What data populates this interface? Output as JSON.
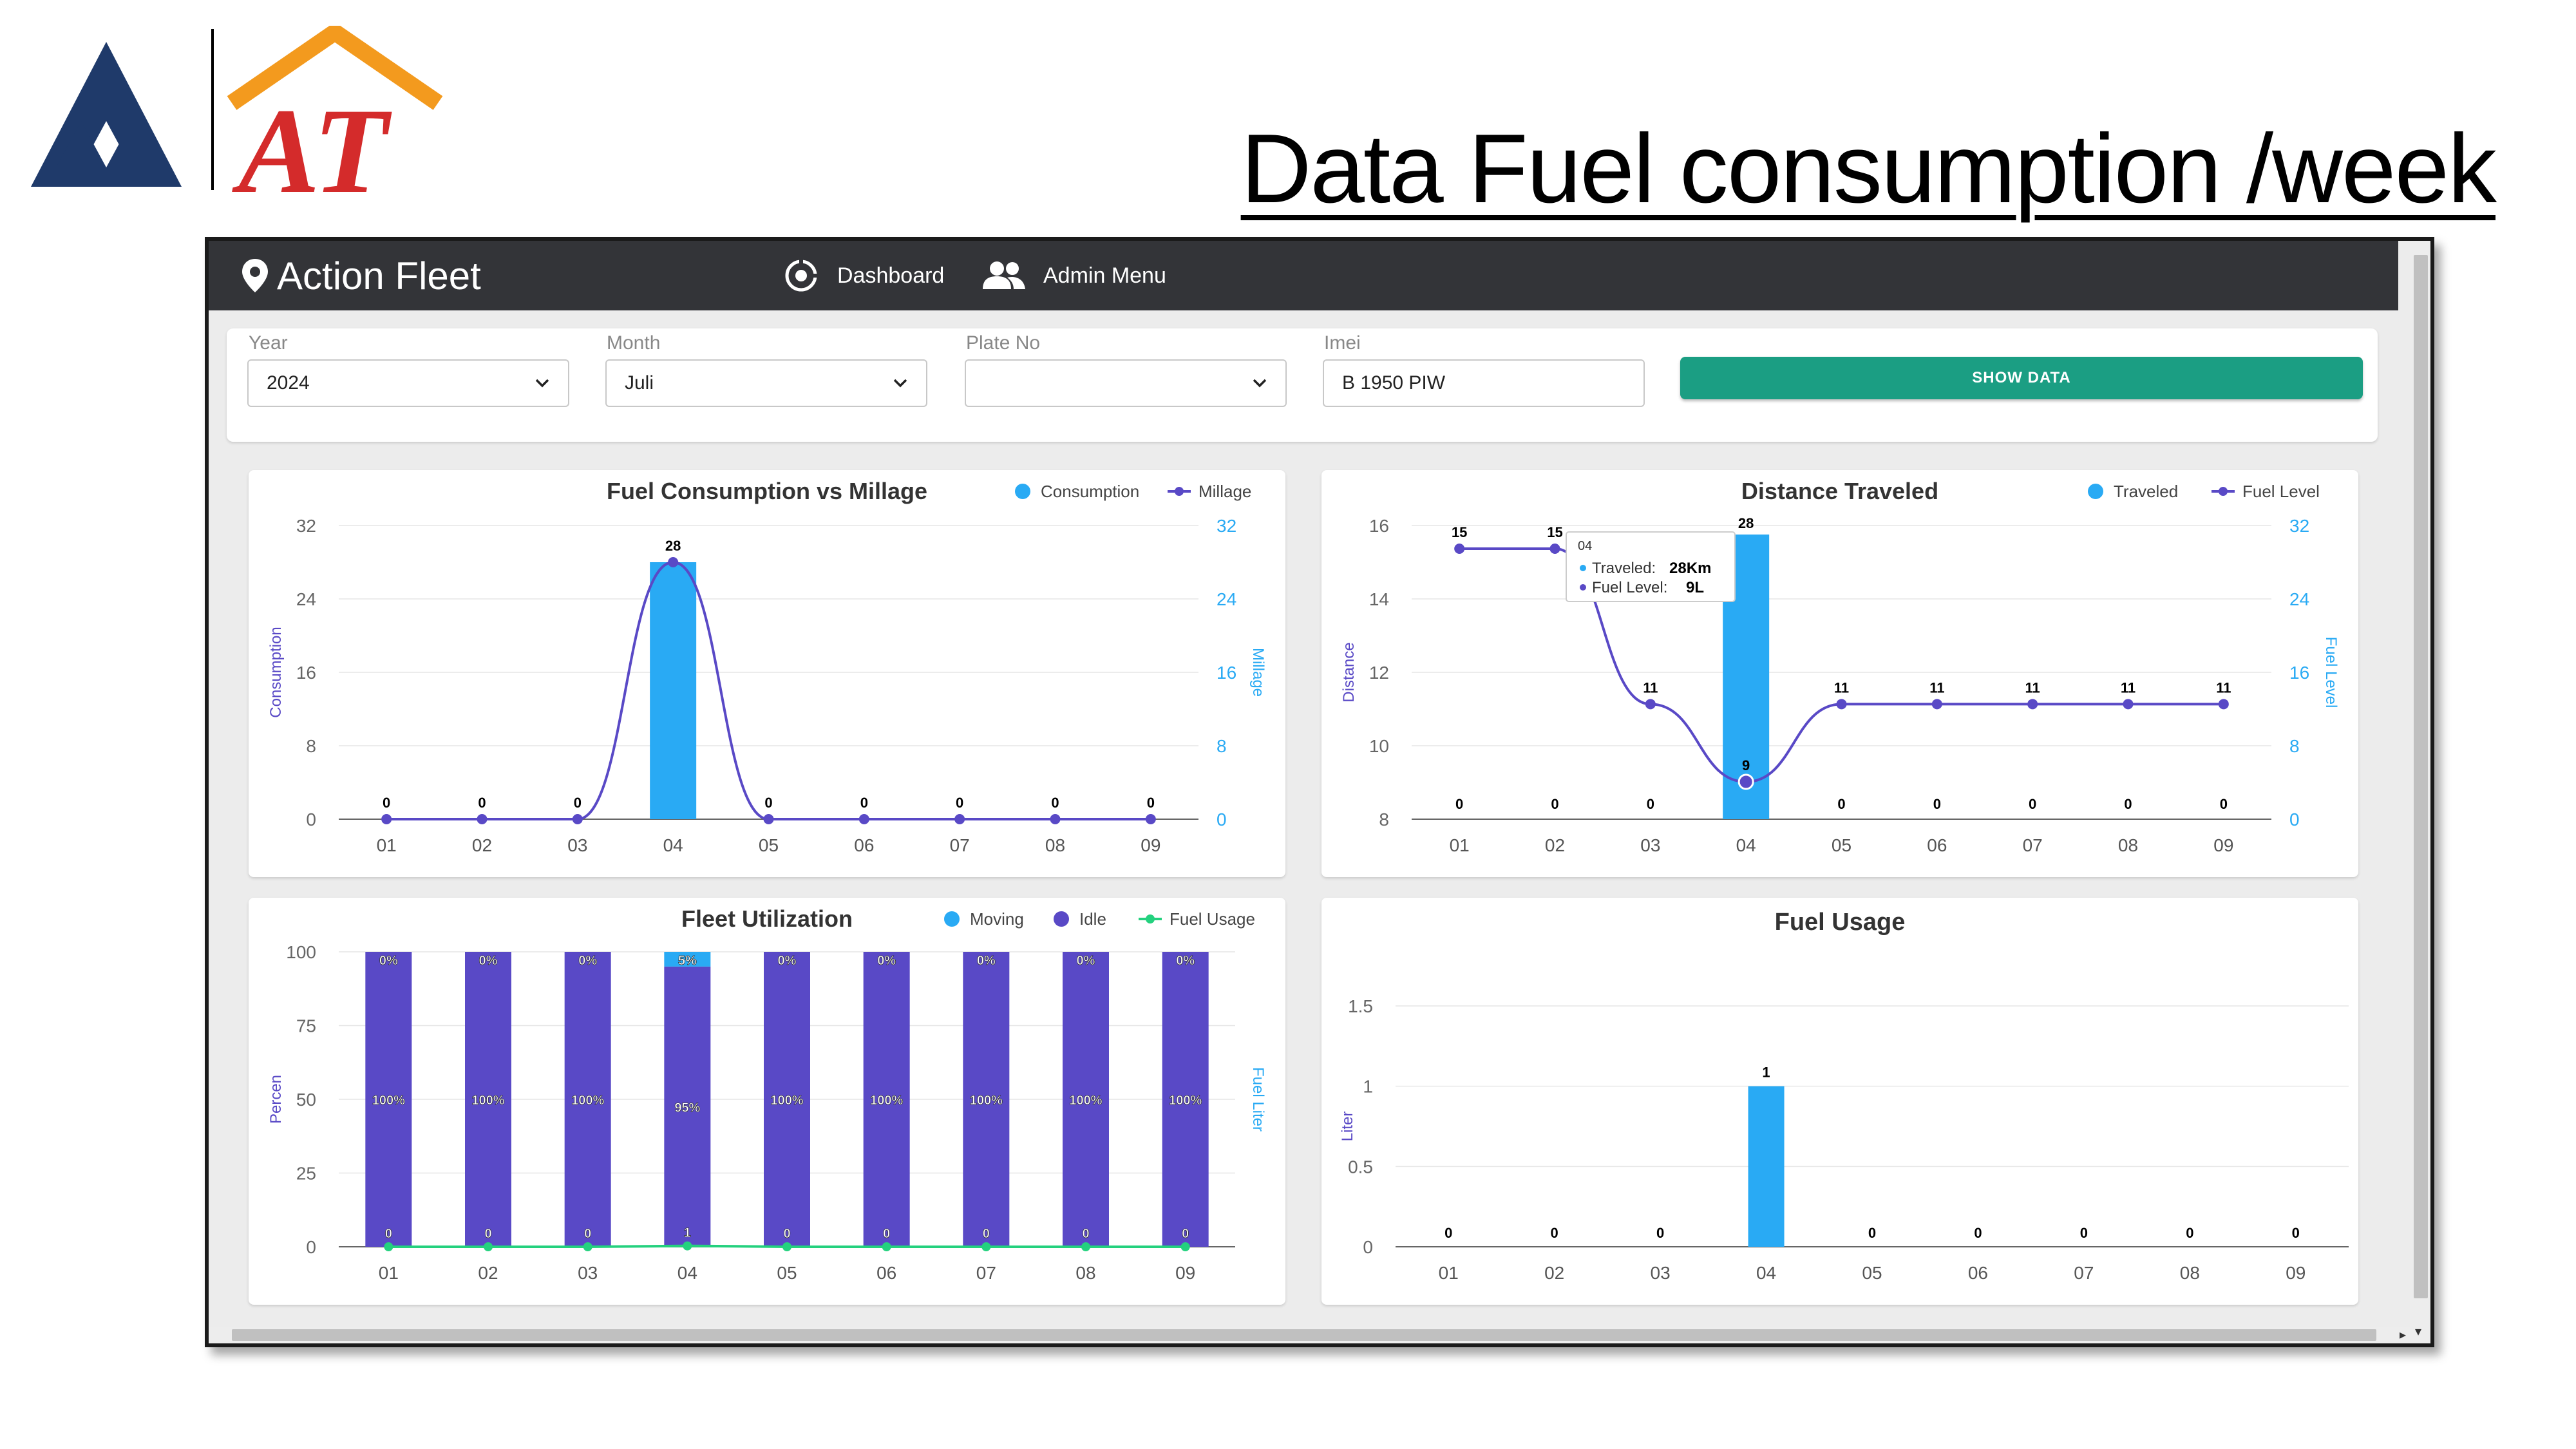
{
  "slide": {
    "title": "Data Fuel consumption /week"
  },
  "logo": {
    "text": "AT"
  },
  "navbar": {
    "brand": "Action Fleet",
    "dashboard_label": "Dashboard",
    "admin_label": "Admin Menu"
  },
  "filters": {
    "year": {
      "label": "Year",
      "value": "2024"
    },
    "month": {
      "label": "Month",
      "value": "Juli"
    },
    "plate": {
      "label": "Plate No",
      "value": ""
    },
    "imei": {
      "label": "Imei",
      "value": "B 1950 PIW"
    },
    "show_button": "SHOW DATA"
  },
  "colors": {
    "blue": "#29aaf4",
    "purple": "#5949c6",
    "green": "#24d17e",
    "teal": "#1b9e83",
    "navbar": "#333438"
  },
  "chart_data": [
    {
      "type": "bar",
      "title": "Fuel Consumption vs Millage",
      "categories": [
        "01",
        "02",
        "03",
        "04",
        "05",
        "06",
        "07",
        "08",
        "09"
      ],
      "series": [
        {
          "name": "Consumption",
          "type": "bar",
          "axis": "left",
          "values": [
            0,
            0,
            0,
            28,
            0,
            0,
            0,
            0,
            0
          ]
        },
        {
          "name": "Millage",
          "type": "line",
          "axis": "right",
          "values": [
            0,
            0,
            0,
            28,
            0,
            0,
            0,
            0,
            0
          ]
        }
      ],
      "ylabel": "Consumption",
      "ylabel_right": "Millage",
      "yticks": [
        "32",
        "24",
        "16",
        "8",
        "0"
      ],
      "yticks_right": [
        "32",
        "24",
        "16",
        "8",
        "0"
      ],
      "ylim": [
        0,
        32
      ],
      "ylim_right": [
        0,
        32
      ],
      "legend": "top-right"
    },
    {
      "type": "bar",
      "title": "Distance Traveled",
      "categories": [
        "01",
        "02",
        "03",
        "04",
        "05",
        "06",
        "07",
        "08",
        "09"
      ],
      "series": [
        {
          "name": "Traveled",
          "type": "bar",
          "axis": "left",
          "values": [
            0,
            0,
            0,
            28,
            0,
            0,
            0,
            0,
            0
          ]
        },
        {
          "name": "Fuel Level",
          "type": "line",
          "axis": "right",
          "values": [
            15,
            15,
            11,
            9,
            11,
            11,
            11,
            11,
            11
          ]
        }
      ],
      "ylabel": "Distance",
      "ylabel_right": "Fuel Level",
      "yticks": [
        "16",
        "14",
        "12",
        "10",
        "8"
      ],
      "yticks_right": [
        "32",
        "24",
        "16",
        "8",
        "0"
      ],
      "ylim": [
        8,
        16
      ],
      "ylim_right": [
        0,
        32
      ],
      "legend": "top-right",
      "tooltip": {
        "title": "04",
        "traveled_label": "Traveled:",
        "traveled_value": "28Km",
        "fuel_label": "Fuel Level:",
        "fuel_value": "9L"
      }
    },
    {
      "type": "bar",
      "title": "Fleet Utilization",
      "categories": [
        "01",
        "02",
        "03",
        "04",
        "05",
        "06",
        "07",
        "08",
        "09"
      ],
      "series": [
        {
          "name": "Moving",
          "type": "bar",
          "stack": "util",
          "values": [
            0,
            0,
            0,
            5,
            0,
            0,
            0,
            0,
            0
          ],
          "labels": [
            "0%",
            "0%",
            "0%",
            "5%",
            "0%",
            "0%",
            "0%",
            "0%",
            "0%"
          ]
        },
        {
          "name": "Idle",
          "type": "bar",
          "stack": "util",
          "values": [
            100,
            100,
            100,
            95,
            100,
            100,
            100,
            100,
            100
          ],
          "labels": [
            "100%",
            "100%",
            "100%",
            "95%",
            "100%",
            "100%",
            "100%",
            "100%",
            "100%"
          ]
        },
        {
          "name": "Fuel Usage",
          "type": "line",
          "axis": "right",
          "values": [
            0,
            0,
            0,
            1,
            0,
            0,
            0,
            0,
            0
          ]
        }
      ],
      "ylabel": "Percen",
      "ylabel_right": "Fuel Liter",
      "yticks": [
        "100",
        "75",
        "50",
        "25",
        "0"
      ],
      "ylim": [
        0,
        100
      ],
      "legend": "top-right"
    },
    {
      "type": "bar",
      "title": "Fuel Usage",
      "categories": [
        "01",
        "02",
        "03",
        "04",
        "05",
        "06",
        "07",
        "08",
        "09"
      ],
      "series": [
        {
          "name": "Fuel Usage",
          "type": "bar",
          "values": [
            0,
            0,
            0,
            1,
            0,
            0,
            0,
            0,
            0
          ]
        }
      ],
      "ylabel": "Liter",
      "yticks": [
        "1.5",
        "1",
        "0.5",
        "0"
      ],
      "ylim": [
        0,
        1.5
      ]
    }
  ]
}
